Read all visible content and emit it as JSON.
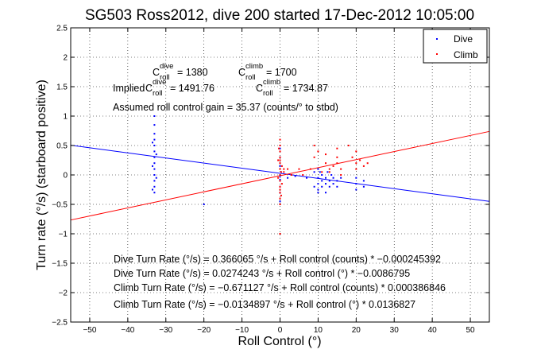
{
  "chart_data": {
    "type": "scatter",
    "title": "SG503 Ross2012, dive 200 started 17-Dec-2012 10:05:00",
    "xlabel": "Roll Control (°)",
    "ylabel": "Turn rate (°/s) (starboard positive)",
    "xlim": [
      -55,
      55
    ],
    "ylim": [
      -2.5,
      2.5
    ],
    "x_ticks": [
      "−50",
      "−40",
      "−30",
      "−20",
      "−10",
      "0",
      "10",
      "20",
      "30",
      "40",
      "50"
    ],
    "x_tick_values": [
      -50,
      -40,
      -30,
      -20,
      -10,
      0,
      10,
      20,
      30,
      40,
      50
    ],
    "y_ticks": [
      "2.5",
      "2",
      "1.5",
      "1",
      "0.5",
      "0",
      "−0.5",
      "−1",
      "−1.5",
      "−2",
      "−2.5"
    ],
    "y_tick_values": [
      2.5,
      2,
      1.5,
      1,
      0.5,
      0,
      -0.5,
      -1,
      -1.5,
      -2,
      -2.5
    ],
    "grid": true,
    "legend_placement": "top-right",
    "series": [
      {
        "name": "Dive",
        "color": "#0000ff",
        "points": [
          [
            -33,
            1.0
          ],
          [
            -33,
            0.85
          ],
          [
            -33,
            0.7
          ],
          [
            -33,
            0.6
          ],
          [
            -33,
            0.5
          ],
          [
            -33,
            0.4
          ],
          [
            -33,
            0.3
          ],
          [
            -33,
            0.2
          ],
          [
            -33,
            0.1
          ],
          [
            -33,
            0.0
          ],
          [
            -33,
            -0.1
          ],
          [
            -33,
            -0.2
          ],
          [
            -33,
            -0.3
          ],
          [
            -33.5,
            0.55
          ],
          [
            -32.5,
            0.35
          ],
          [
            -33.5,
            0.15
          ],
          [
            -32.5,
            -0.05
          ],
          [
            -33.5,
            -0.25
          ],
          [
            0,
            0.45
          ],
          [
            0,
            0.3
          ],
          [
            0,
            0.15
          ],
          [
            0,
            0.0
          ],
          [
            0,
            -0.1
          ],
          [
            0,
            -0.2
          ],
          [
            0,
            -0.3
          ],
          [
            0,
            -0.45
          ],
          [
            2,
            -0.05
          ],
          [
            4,
            -0.02
          ],
          [
            7,
            -0.05
          ],
          [
            9,
            0.05
          ],
          [
            9,
            -0.2
          ],
          [
            10,
            0.1
          ],
          [
            10,
            -0.05
          ],
          [
            10,
            -0.15
          ],
          [
            10,
            -0.25
          ],
          [
            10.5,
            0.05
          ],
          [
            11,
            0.0
          ],
          [
            11,
            -0.1
          ],
          [
            11,
            -0.2
          ],
          [
            12,
            -0.05
          ],
          [
            12,
            -0.15
          ],
          [
            12.5,
            0.05
          ],
          [
            13,
            -0.1
          ],
          [
            13,
            -0.2
          ],
          [
            13.5,
            0.0
          ],
          [
            14,
            -0.05
          ],
          [
            14,
            -0.15
          ],
          [
            15,
            -0.1
          ],
          [
            15,
            -0.2
          ],
          [
            16,
            -0.05
          ],
          [
            20,
            -0.05
          ],
          [
            20,
            -0.15
          ],
          [
            20,
            -0.25
          ],
          [
            22,
            -0.1
          ],
          [
            22,
            -0.2
          ],
          [
            10,
            -0.3
          ],
          [
            12,
            -0.3
          ],
          [
            -20,
            -0.5
          ],
          [
            0,
            -0.02
          ],
          [
            0,
            -0.08
          ]
        ]
      },
      {
        "name": "Climb",
        "color": "#ff0000",
        "points": [
          [
            0,
            0.6
          ],
          [
            0,
            0.5
          ],
          [
            0,
            0.4
          ],
          [
            0,
            0.3
          ],
          [
            0,
            0.2
          ],
          [
            0,
            0.1
          ],
          [
            0,
            0.0
          ],
          [
            0,
            -0.1
          ],
          [
            0,
            -0.2
          ],
          [
            0,
            -0.3
          ],
          [
            0,
            -0.4
          ],
          [
            0,
            -0.5
          ],
          [
            0,
            -1.0
          ],
          [
            -0.5,
            0.25
          ],
          [
            0.5,
            0.15
          ],
          [
            -0.5,
            -0.05
          ],
          [
            0.5,
            -0.15
          ],
          [
            -0.3,
            0.45
          ],
          [
            0.3,
            0.05
          ],
          [
            0.3,
            -0.35
          ],
          [
            1,
            0.1
          ],
          [
            1,
            0.05
          ],
          [
            2,
            0.1
          ],
          [
            3,
            0.0
          ],
          [
            5,
            0.1
          ],
          [
            6,
            0.0
          ],
          [
            8,
            0.1
          ],
          [
            9,
            0.5
          ],
          [
            9,
            0.3
          ],
          [
            10,
            0.4
          ],
          [
            11,
            0.05
          ],
          [
            12,
            0.35
          ],
          [
            12,
            0.2
          ],
          [
            13,
            0.1
          ],
          [
            13,
            0.05
          ],
          [
            14,
            0.15
          ],
          [
            15,
            0.3
          ],
          [
            15,
            0.2
          ],
          [
            15,
            0.45
          ],
          [
            16,
            0.1
          ],
          [
            16,
            0.0
          ],
          [
            18,
            0.5
          ],
          [
            19,
            0.3
          ],
          [
            20,
            0.2
          ],
          [
            20,
            0.4
          ],
          [
            20,
            0.1
          ],
          [
            21,
            0.25
          ],
          [
            22,
            0.15
          ],
          [
            23,
            0.2
          ],
          [
            0,
            0.25
          ],
          [
            0,
            -0.25
          ]
        ]
      }
    ],
    "fit_lines": [
      {
        "series": "Dive",
        "color": "#0000ff",
        "intercept": 0.0274243,
        "slope": -0.0086795
      },
      {
        "series": "Climb",
        "color": "#ff0000",
        "intercept": -0.0134897,
        "slope": 0.0136827
      }
    ],
    "annotations": {
      "c_roll_line": {
        "c_dive": {
          "main": "C",
          "sup": "dive",
          "sub": "roll",
          "value": " = 1380"
        },
        "c_climb": {
          "main": "C",
          "sup": "climb",
          "sub": "roll",
          "value": " = 1700"
        }
      },
      "implied_line": {
        "prefix": "Implied ",
        "c_dive": {
          "main": "C",
          "sup": "dive",
          "sub": "roll",
          "value": " = 1491.76"
        },
        "c_climb": {
          "main": "C",
          "sup": "climb",
          "sub": "roll",
          "value": " = 1734.87"
        }
      },
      "gain_line": "Assumed roll control gain = 35.37 (counts/° to stbd)",
      "dive_counts": "Dive Turn Rate (°/s) = 0.366065 °/s + Roll control (counts) * −0.000245392",
      "dive_deg": "Dive Turn Rate (°/s) = 0.0274243 °/s + Roll control (°) * −0.0086795",
      "climb_counts": "Climb Turn Rate (°/s) = −0.671127 °/s + Roll control (counts) * 0.000386846",
      "climb_deg": "Climb Turn Rate (°/s) = −0.0134897 °/s + Roll control (°) * 0.0136827"
    }
  }
}
